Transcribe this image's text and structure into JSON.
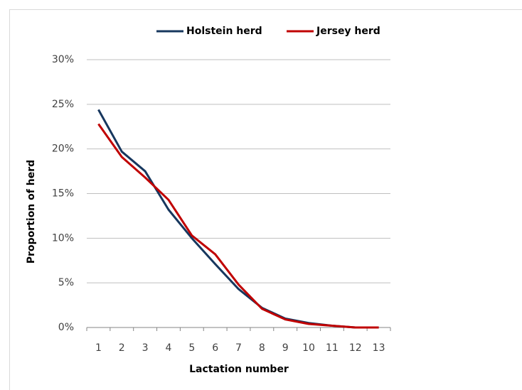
{
  "chart_data": {
    "type": "line",
    "xlabel": "Lactation number",
    "ylabel": "Proportion of herd",
    "categories": [
      "1",
      "2",
      "3",
      "4",
      "5",
      "6",
      "7",
      "8",
      "9",
      "10",
      "11",
      "12",
      "13"
    ],
    "series": [
      {
        "name": "Holstein herd",
        "color": "#17375e",
        "values": [
          24.4,
          19.7,
          17.5,
          13.2,
          10.0,
          7.1,
          4.3,
          2.2,
          1.0,
          0.5,
          0.2,
          0.0,
          0.0
        ]
      },
      {
        "name": "Jersey herd",
        "color": "#c00000",
        "values": [
          22.8,
          19.1,
          16.8,
          14.3,
          10.3,
          8.2,
          4.8,
          2.1,
          0.9,
          0.4,
          0.2,
          0.0,
          0.0
        ]
      }
    ],
    "ylim": [
      0,
      30
    ],
    "yticks": [
      {
        "value": 0,
        "label": "0%"
      },
      {
        "value": 5,
        "label": "5%"
      },
      {
        "value": 10,
        "label": "10%"
      },
      {
        "value": 15,
        "label": "15%"
      },
      {
        "value": 20,
        "label": "20%"
      },
      {
        "value": 25,
        "label": "25%"
      },
      {
        "value": 30,
        "label": "30%"
      }
    ],
    "grid": true,
    "legend": "top"
  }
}
